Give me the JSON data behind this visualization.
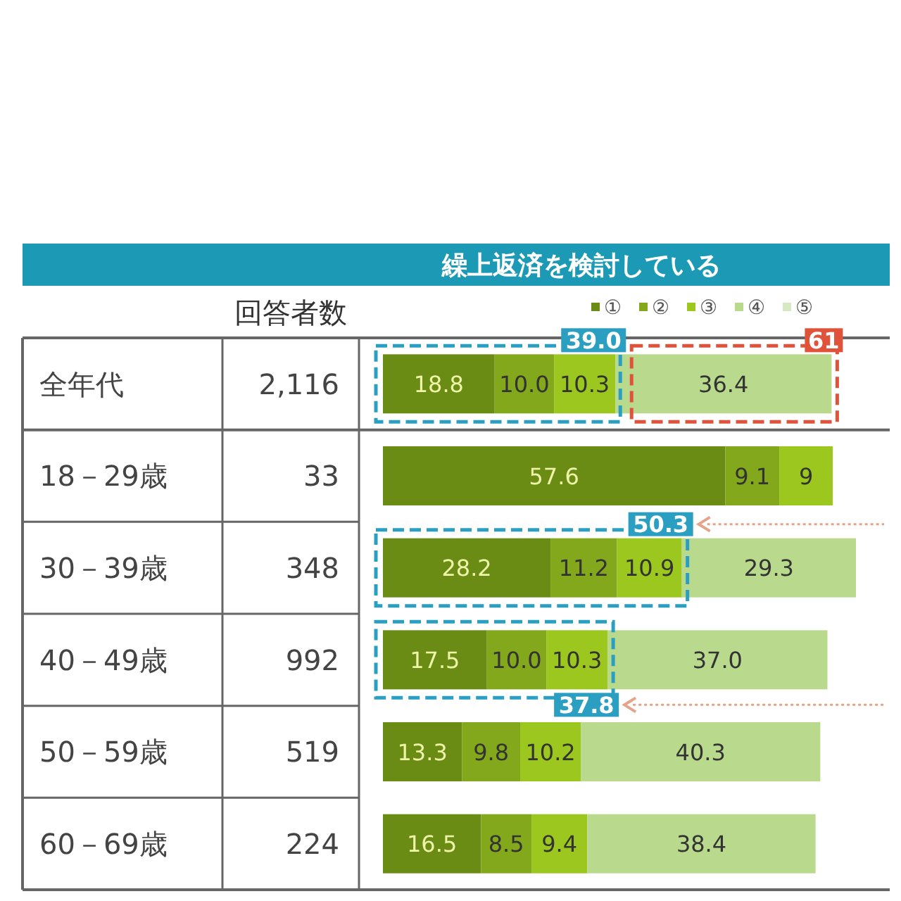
{
  "chart_data": {
    "type": "bar",
    "orientation": "horizontal",
    "stacked": true,
    "title": "繰上返済を検討している",
    "categories": [
      "全年代",
      "18－29歳",
      "30－39歳",
      "40－49歳",
      "50－59歳",
      "60－69歳"
    ],
    "y2label": "回答者数",
    "y2_categories": [
      "2,116",
      "33",
      "348",
      "992",
      "519",
      "224"
    ],
    "legend": "top right",
    "tick_labels": "y",
    "series": [
      {
        "name": "①",
        "color": "#6b8c14",
        "values": [
          18.8,
          57.6,
          28.2,
          17.5,
          13.3,
          16.5
        ],
        "value_labels": [
          "18.8",
          "57.6",
          "28.2",
          "17.5",
          "13.3",
          "16.5"
        ]
      },
      {
        "name": "②",
        "color": "#83a81c",
        "values": [
          10.0,
          9.1,
          11.2,
          10.0,
          9.8,
          8.5
        ],
        "value_labels": [
          "10.0",
          "9.1",
          "11.2",
          "10.0",
          "9.8",
          "8.5"
        ]
      },
      {
        "name": "③",
        "color": "#9cc71e",
        "values": [
          10.3,
          9,
          10.9,
          10.3,
          10.2,
          9.4
        ],
        "value_labels": [
          "10.3",
          "9",
          "10.9",
          "10.3",
          "10.2",
          "9.4"
        ]
      },
      {
        "name": "④",
        "color": "#b9d98c",
        "values": [
          36.4,
          null,
          29.3,
          37.0,
          40.3,
          38.4
        ],
        "value_labels": [
          "36.4",
          null,
          "29.3",
          "37.0",
          "40.3",
          "38.4"
        ]
      },
      {
        "name": "⑤",
        "color": "#d6e9c2",
        "values": [
          null,
          null,
          null,
          null,
          null,
          null
        ]
      }
    ],
    "annotations": [
      {
        "text": "39.0",
        "x": 39.0,
        "y": "全年代"
      },
      {
        "text": "50.3",
        "x": 50.3,
        "y": "30－39歳"
      },
      {
        "text": "37.8",
        "x": 37.8,
        "y": "40－49歳"
      },
      {
        "text": "61",
        "x": 75.5,
        "y": "全年代"
      }
    ]
  }
}
